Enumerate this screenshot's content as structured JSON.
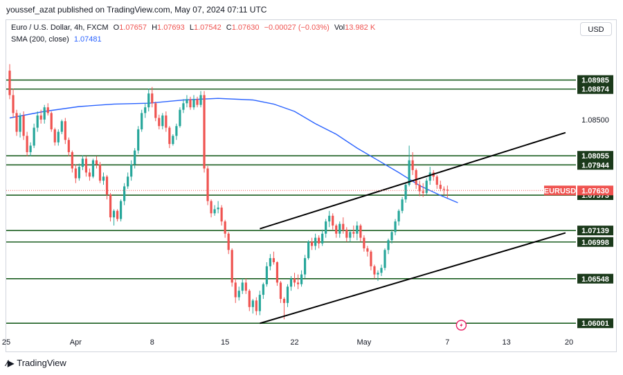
{
  "header": {
    "published": "youssef_azat published on TradingView.com, May 07, 2024 07:11 UTC"
  },
  "legend": {
    "symbol": "Euro / U.S. Dollar, 4h, FXCM",
    "open_label": "O",
    "open": "1.07657",
    "high_label": "H",
    "high": "1.07693",
    "low_label": "L",
    "low": "1.07542",
    "close_label": "C",
    "close": "1.07630",
    "change": "−0.00027 (−0.03%)",
    "vol_label": "Vol",
    "vol": "13.982 K",
    "sma_label": "SMA (200, close)",
    "sma_value": "1.07481"
  },
  "currency_button": "USD",
  "footer": {
    "brand": "TradingView",
    "icon": "tradingview-logo-icon"
  },
  "colors": {
    "up": "#26a69a",
    "down": "#ef5350",
    "sma": "#2962ff",
    "level_line": "#1b5e20",
    "channel": "#000000",
    "label_bg": "#1b3a1b"
  },
  "chart_data": {
    "type": "candlestick",
    "symbol": "EURUSD",
    "timeframe": "4h",
    "x_ticks": [
      "25",
      "Apr",
      "8",
      "15",
      "22",
      "May",
      "7",
      "13",
      "20"
    ],
    "y_tick": "1.08500",
    "ylim": [
      1.0585,
      1.095
    ],
    "horizontal_levels": [
      "1.08985",
      "1.08874",
      "1.08055",
      "1.07944",
      "1.07573",
      "1.07139",
      "1.06998",
      "1.06548",
      "1.06001"
    ],
    "current_price": {
      "label": "EURUSD",
      "value": "1.07630"
    },
    "sma": {
      "name": "SMA (200, close)",
      "value": 1.07481,
      "points": [
        [
          0,
          1.0852
        ],
        [
          10,
          1.086
        ],
        [
          20,
          1.0866
        ],
        [
          30,
          1.0869
        ],
        [
          40,
          1.087
        ],
        [
          50,
          1.0874
        ],
        [
          60,
          1.0876
        ],
        [
          70,
          1.0874
        ],
        [
          76,
          1.0869
        ],
        [
          82,
          1.086
        ],
        [
          88,
          1.0845
        ],
        [
          94,
          1.0832
        ],
        [
          100,
          1.0815
        ],
        [
          106,
          1.08
        ],
        [
          112,
          1.0785
        ],
        [
          118,
          1.0769
        ],
        [
          124,
          1.0757
        ],
        [
          129,
          1.0748
        ]
      ]
    },
    "channel_lines": [
      {
        "name": "upper",
        "points": [
          [
            72,
            1.0716
          ],
          [
            160,
            1.0834
          ]
        ]
      },
      {
        "name": "lower",
        "points": [
          [
            72,
            1.06
          ],
          [
            160,
            1.0711
          ]
        ]
      }
    ],
    "candles": {
      "x_start": 0,
      "open": [
        1.091,
        1.088,
        1.0858,
        1.0835,
        1.0855,
        1.083,
        1.081,
        1.0818,
        1.084,
        1.0855,
        1.085,
        1.0865,
        1.0858,
        1.0838,
        1.0822,
        1.0835,
        1.0848,
        1.0825,
        1.081,
        1.079,
        1.0778,
        1.0792,
        1.0802,
        1.0785,
        1.078,
        1.08,
        1.0795,
        1.0775,
        1.078,
        1.0758,
        1.073,
        1.0738,
        1.0728,
        1.075,
        1.0768,
        1.078,
        1.0795,
        1.0812,
        1.0838,
        1.0858,
        1.0865,
        1.0882,
        1.087,
        1.0852,
        1.0842,
        1.0855,
        1.084,
        1.082,
        1.083,
        1.0842,
        1.0862,
        1.087,
        1.0875,
        1.0865,
        1.0875,
        1.0868,
        1.088,
        1.079,
        1.075,
        1.0735,
        1.074,
        1.0742,
        1.0725,
        1.071,
        1.069,
        1.065,
        1.0632,
        1.064,
        1.065,
        1.064,
        1.062,
        1.0628,
        1.0615,
        1.0635,
        1.0648,
        1.067,
        1.068,
        1.0675,
        1.065,
        1.063,
        1.0625,
        1.0645,
        1.0655,
        1.065,
        1.0648,
        1.066,
        1.068,
        1.07,
        1.0695,
        1.0705,
        1.0698,
        1.071,
        1.0725,
        1.0732,
        1.072,
        1.071,
        1.0722,
        1.0715,
        1.0705,
        1.0712,
        1.071,
        1.072,
        1.0705,
        1.0692,
        1.0688,
        1.067,
        1.066,
        1.0662,
        1.0668,
        1.069,
        1.0702,
        1.0712,
        1.0725,
        1.0738,
        1.0752,
        1.077,
        1.08,
        1.0788,
        1.077,
        1.0762,
        1.076,
        1.0775,
        1.0785,
        1.078,
        1.077,
        1.0765,
        1.0764
      ],
      "high": [
        1.0918,
        1.0888,
        1.0862,
        1.0858,
        1.086,
        1.0835,
        1.0822,
        1.0845,
        1.086,
        1.0862,
        1.0868,
        1.087,
        1.086,
        1.084,
        1.0838,
        1.085,
        1.0852,
        1.0828,
        1.0812,
        1.0795,
        1.0796,
        1.0806,
        1.0805,
        1.079,
        1.0802,
        1.0805,
        1.0798,
        1.0785,
        1.0782,
        1.076,
        1.074,
        1.074,
        1.0752,
        1.0772,
        1.0785,
        1.08,
        1.0815,
        1.0842,
        1.0862,
        1.087,
        1.0888,
        1.089,
        1.0872,
        1.0856,
        1.0858,
        1.086,
        1.0842,
        1.0832,
        1.0845,
        1.0865,
        1.0875,
        1.088,
        1.0878,
        1.088,
        1.0878,
        1.0885,
        1.0885,
        1.0793,
        1.0752,
        1.0745,
        1.075,
        1.0745,
        1.0727,
        1.0712,
        1.0692,
        1.0655,
        1.0645,
        1.0655,
        1.0655,
        1.0642,
        1.063,
        1.0632,
        1.064,
        1.065,
        1.0675,
        1.0685,
        1.0688,
        1.0676,
        1.0652,
        1.0632,
        1.0648,
        1.0658,
        1.0662,
        1.066,
        1.0665,
        1.0684,
        1.0702,
        1.0705,
        1.071,
        1.0708,
        1.0715,
        1.0728,
        1.0738,
        1.0735,
        1.0722,
        1.0725,
        1.073,
        1.0718,
        1.0715,
        1.072,
        1.0725,
        1.0722,
        1.0708,
        1.0695,
        1.069,
        1.0672,
        1.0665,
        1.0672,
        1.0692,
        1.0704,
        1.0715,
        1.0728,
        1.074,
        1.0755,
        1.0772,
        1.0818,
        1.081,
        1.079,
        1.0775,
        1.0772,
        1.0778,
        1.0792,
        1.0788,
        1.0782,
        1.0775,
        1.0768,
        1.0769
      ],
      "low": [
        1.0875,
        1.0852,
        1.083,
        1.0828,
        1.0825,
        1.0805,
        1.0805,
        1.0815,
        1.0835,
        1.0845,
        1.0845,
        1.0855,
        1.0835,
        1.0818,
        1.0818,
        1.0832,
        1.082,
        1.0805,
        1.0785,
        1.0772,
        1.0775,
        1.0788,
        1.078,
        1.0775,
        1.0778,
        1.079,
        1.0772,
        1.077,
        1.0752,
        1.0725,
        1.072,
        1.0725,
        1.0725,
        1.0745,
        1.0765,
        1.0775,
        1.079,
        1.0808,
        1.0835,
        1.0852,
        1.086,
        1.0865,
        1.0848,
        1.0838,
        1.0838,
        1.0835,
        1.0815,
        1.0818,
        1.0825,
        1.084,
        1.0858,
        1.0865,
        1.0862,
        1.0862,
        1.0865,
        1.0865,
        1.0785,
        1.0745,
        1.073,
        1.0732,
        1.0735,
        1.072,
        1.0705,
        1.0685,
        1.0645,
        1.0625,
        1.0628,
        1.0636,
        1.0636,
        1.0615,
        1.0612,
        1.061,
        1.061,
        1.063,
        1.0645,
        1.0665,
        1.0672,
        1.0646,
        1.0625,
        1.0605,
        1.062,
        1.064,
        1.0645,
        1.0642,
        1.0645,
        1.0655,
        1.0678,
        1.069,
        1.069,
        1.0692,
        1.0695,
        1.0705,
        1.0718,
        1.0715,
        1.0705,
        1.0705,
        1.071,
        1.07,
        1.07,
        1.0705,
        1.0702,
        1.07,
        1.0688,
        1.0682,
        1.0665,
        1.0655,
        1.0652,
        1.0658,
        1.0665,
        1.0685,
        1.0698,
        1.0708,
        1.072,
        1.0735,
        1.0748,
        1.0768,
        1.0782,
        1.0765,
        1.0756,
        1.0755,
        1.0758,
        1.077,
        1.0775,
        1.0765,
        1.0762,
        1.0758,
        1.0754
      ],
      "close": [
        1.088,
        1.0858,
        1.0835,
        1.0855,
        1.083,
        1.081,
        1.0818,
        1.084,
        1.0855,
        1.085,
        1.0865,
        1.0858,
        1.0838,
        1.0822,
        1.0835,
        1.0848,
        1.0825,
        1.081,
        1.079,
        1.0778,
        1.0792,
        1.0802,
        1.0785,
        1.078,
        1.08,
        1.0795,
        1.0775,
        1.078,
        1.0758,
        1.073,
        1.0738,
        1.0728,
        1.075,
        1.0768,
        1.078,
        1.0795,
        1.0812,
        1.0838,
        1.0858,
        1.0865,
        1.0882,
        1.087,
        1.0852,
        1.0842,
        1.0855,
        1.084,
        1.082,
        1.083,
        1.0842,
        1.0862,
        1.087,
        1.0875,
        1.0865,
        1.0875,
        1.0868,
        1.088,
        1.079,
        1.075,
        1.0735,
        1.074,
        1.0742,
        1.0725,
        1.071,
        1.069,
        1.065,
        1.0632,
        1.064,
        1.065,
        1.064,
        1.062,
        1.0628,
        1.0615,
        1.0635,
        1.0648,
        1.067,
        1.068,
        1.0675,
        1.065,
        1.063,
        1.0625,
        1.0645,
        1.0655,
        1.065,
        1.0648,
        1.066,
        1.068,
        1.07,
        1.0695,
        1.0705,
        1.0698,
        1.071,
        1.0725,
        1.0732,
        1.072,
        1.071,
        1.0722,
        1.0715,
        1.0705,
        1.0712,
        1.071,
        1.072,
        1.0705,
        1.0692,
        1.0688,
        1.067,
        1.066,
        1.0662,
        1.0668,
        1.069,
        1.0702,
        1.0712,
        1.0725,
        1.0738,
        1.0752,
        1.077,
        1.08,
        1.0788,
        1.077,
        1.0762,
        1.076,
        1.0775,
        1.0785,
        1.078,
        1.077,
        1.0765,
        1.0764,
        1.0763
      ]
    }
  }
}
